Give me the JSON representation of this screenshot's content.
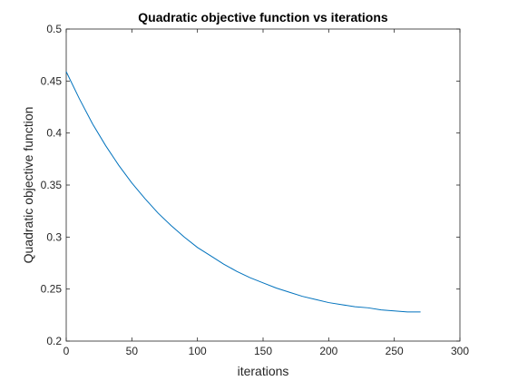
{
  "chart_data": {
    "type": "line",
    "title": "Quadratic objective function vs iterations",
    "xlabel": "iterations",
    "ylabel": "Quadratic objective function",
    "xlim": [
      0,
      300
    ],
    "ylim": [
      0.2,
      0.5
    ],
    "xticks": [
      0,
      50,
      100,
      150,
      200,
      250,
      300
    ],
    "yticks": [
      0.2,
      0.25,
      0.3,
      0.35,
      0.4,
      0.45,
      0.5
    ],
    "xtick_labels": [
      "0",
      "50",
      "100",
      "150",
      "200",
      "250",
      "300"
    ],
    "ytick_labels": [
      "0.2",
      "0.25",
      "0.3",
      "0.35",
      "0.4",
      "0.45",
      "0.5"
    ],
    "grid": false,
    "series": [
      {
        "color": "#0072BD",
        "x": [
          0,
          10,
          20,
          30,
          40,
          50,
          60,
          70,
          80,
          90,
          100,
          110,
          120,
          130,
          140,
          150,
          160,
          170,
          180,
          190,
          200,
          210,
          220,
          230,
          240,
          250,
          260,
          270
        ],
        "y": [
          0.459,
          0.433,
          0.409,
          0.388,
          0.369,
          0.352,
          0.337,
          0.323,
          0.311,
          0.3,
          0.29,
          0.282,
          0.274,
          0.267,
          0.261,
          0.256,
          0.251,
          0.247,
          0.243,
          0.24,
          0.237,
          0.235,
          0.233,
          0.232,
          0.23,
          0.229,
          0.228,
          0.228
        ]
      }
    ]
  }
}
